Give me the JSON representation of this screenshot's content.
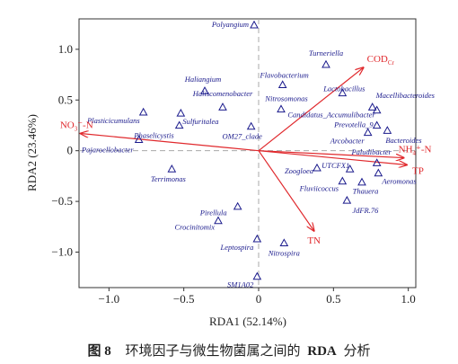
{
  "chart_data": {
    "type": "scatter",
    "subtype": "rda-biplot",
    "xlabel": "RDA1 (52.14%)",
    "ylabel": "RDA2 (23.46%)",
    "xlim": [
      -1.2,
      1.05
    ],
    "ylim": [
      -1.35,
      1.3
    ],
    "xticks": [
      -1.0,
      -0.5,
      0.0,
      0.5,
      1.0
    ],
    "yticks": [
      -1.0,
      -0.5,
      0.0,
      0.5,
      1.0
    ],
    "xtick_labels": [
      "−1.0",
      "−0.5",
      "0",
      "0.5",
      "1.0"
    ],
    "ytick_labels": [
      "−1.0",
      "−0.5",
      "0",
      "0.5",
      "1.0"
    ],
    "reference_lines": "dashed gray at x=0 and y=0",
    "grid": false,
    "marker_color": "#1a1a8c",
    "arrow_color": "#e0282c",
    "species": [
      {
        "name": "Polyangium",
        "x": -0.03,
        "y": 1.24
      },
      {
        "name": "Turneriella",
        "x": 0.45,
        "y": 0.85
      },
      {
        "name": "Flavobacterium",
        "x": 0.16,
        "y": 0.65
      },
      {
        "name": "Haliangium",
        "x": -0.36,
        "y": 0.59
      },
      {
        "name": "Lactobacillus",
        "x": 0.56,
        "y": 0.57
      },
      {
        "name": "Haliscomenobacter",
        "x": -0.24,
        "y": 0.43
      },
      {
        "name": "Nitrosomonas",
        "x": 0.15,
        "y": 0.41
      },
      {
        "name": "Macellibacteroides",
        "x": 0.76,
        "y": 0.43
      },
      {
        "name": "Candidatus_Accumulibacter",
        "x": 0.79,
        "y": 0.4
      },
      {
        "name": "Plasticicumulans",
        "x": -0.77,
        "y": 0.38
      },
      {
        "name": "Sulfuritalea",
        "x": -0.52,
        "y": 0.37
      },
      {
        "name": "Prevotella_9",
        "x": 0.79,
        "y": 0.25
      },
      {
        "name": "Phaselicystis",
        "x": -0.53,
        "y": 0.25
      },
      {
        "name": "OM27_clade",
        "x": -0.05,
        "y": 0.24
      },
      {
        "name": "Arcobacter",
        "x": 0.73,
        "y": 0.18
      },
      {
        "name": "Bacteroides",
        "x": 0.86,
        "y": 0.2
      },
      {
        "name": "Pajaroellobacter",
        "x": -0.8,
        "y": 0.11
      },
      {
        "name": "Paludibacter",
        "x": 0.79,
        "y": -0.12
      },
      {
        "name": "UTCFX1",
        "x": 0.61,
        "y": -0.18
      },
      {
        "name": "Terrimonas",
        "x": -0.58,
        "y": -0.18
      },
      {
        "name": "Zoogloea",
        "x": 0.39,
        "y": -0.17
      },
      {
        "name": "Aeromonas",
        "x": 0.8,
        "y": -0.22
      },
      {
        "name": "Fluviicoccus",
        "x": 0.56,
        "y": -0.3
      },
      {
        "name": "Thauera",
        "x": 0.69,
        "y": -0.31
      },
      {
        "name": "JdFR.76",
        "x": 0.59,
        "y": -0.49
      },
      {
        "name": "Pirellula",
        "x": -0.14,
        "y": -0.55
      },
      {
        "name": "Crocinitomix",
        "x": -0.27,
        "y": -0.69
      },
      {
        "name": "Leptospira",
        "x": -0.01,
        "y": -0.87
      },
      {
        "name": "Nitrospira",
        "x": 0.17,
        "y": -0.91
      },
      {
        "name": "SM1A02",
        "x": -0.01,
        "y": -1.24
      }
    ],
    "environmental_factors": [
      {
        "name": "COD",
        "subscript": "Cr",
        "x": 0.7,
        "y": 0.82
      },
      {
        "name": "NO",
        "subscript": "3",
        "suffix": "⁻-N",
        "x": -1.19,
        "y": 0.17
      },
      {
        "name": "NH",
        "subscript": "4",
        "suffix": "⁺-N",
        "x": 0.97,
        "y": -0.07
      },
      {
        "name": "TP",
        "x": 0.99,
        "y": -0.14
      },
      {
        "name": "TN",
        "x": 0.37,
        "y": -0.79
      }
    ]
  },
  "caption": {
    "figure_number": "图 8",
    "text_before": "环境因子与微生物菌属之间的",
    "text_bold": "RDA",
    "text_after": "分析"
  }
}
